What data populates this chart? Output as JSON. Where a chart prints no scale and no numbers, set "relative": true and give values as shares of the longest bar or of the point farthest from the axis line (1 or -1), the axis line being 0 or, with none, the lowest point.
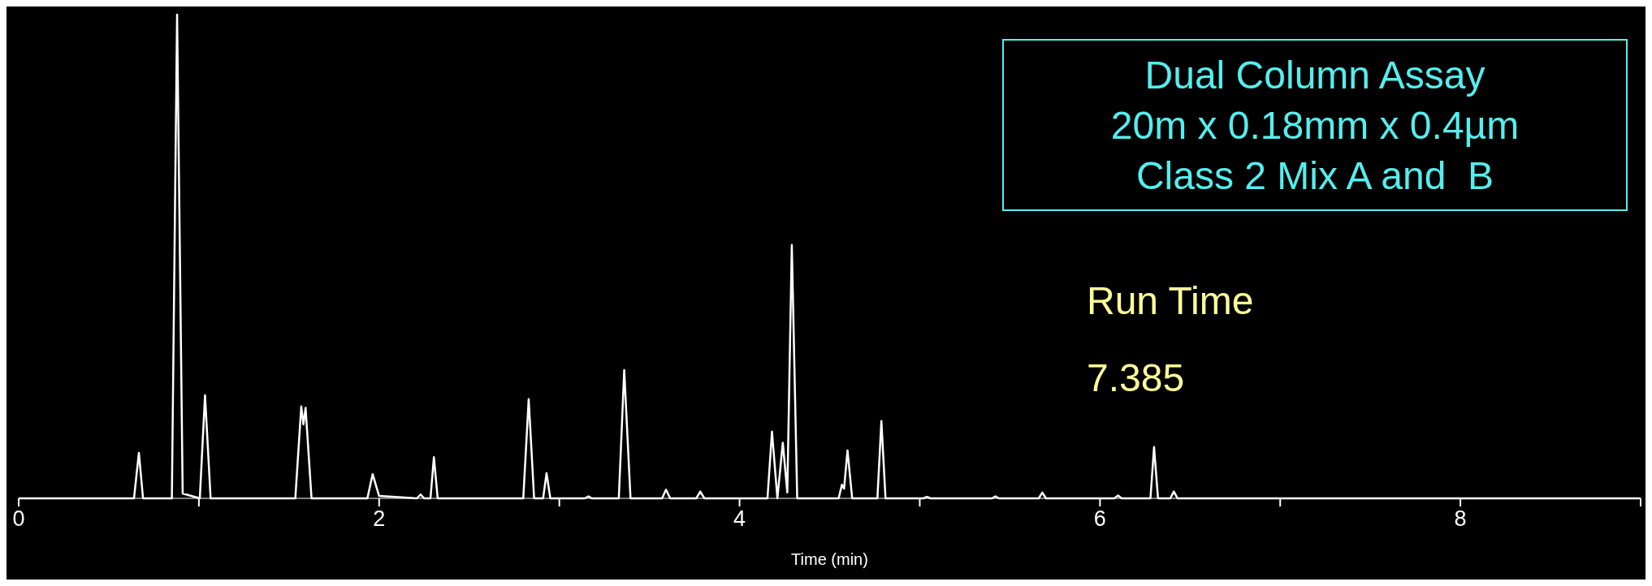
{
  "chart_data": {
    "type": "line",
    "relative": true,
    "xlabel": "Time (min)",
    "annotations": [
      "Dual Column Assay",
      "20m x 0.18mm x 0.4µm",
      "Class 2 Mix A and  B",
      "Run Time",
      "7.385"
    ],
    "xlim": [
      0,
      9
    ],
    "xticks": [
      0,
      {
        "value": 1,
        "label": null
      },
      2,
      {
        "value": 3,
        "label": null
      },
      4,
      {
        "value": 5,
        "label": null
      },
      6,
      {
        "value": 7,
        "label": null
      },
      8,
      {
        "value": 9,
        "label": null
      }
    ],
    "grid": false,
    "legend": false,
    "marker": "none",
    "line_style": "solid",
    "series": [
      {
        "color": "#ffffff",
        "x": [
          0,
          0.64,
          0.667,
          0.69,
          0.85,
          0.879,
          0.91,
          1.005,
          1.034,
          1.065,
          1.535,
          1.568,
          1.58,
          1.592,
          1.625,
          1.935,
          1.964,
          2.0,
          2.21,
          2.23,
          2.25,
          2.285,
          2.304,
          2.325,
          2.8,
          2.83,
          2.86,
          2.91,
          2.929,
          2.95,
          3.14,
          3.162,
          3.18,
          3.33,
          3.36,
          3.395,
          3.57,
          3.592,
          3.615,
          3.76,
          3.782,
          3.805,
          4.155,
          4.18,
          4.21,
          4.24,
          4.265,
          4.29,
          4.32,
          4.55,
          4.568,
          4.58,
          4.599,
          4.625,
          4.765,
          4.787,
          4.81,
          5.02,
          5.04,
          5.06,
          5.4,
          5.42,
          5.44,
          5.66,
          5.68,
          5.7,
          6.08,
          6.1,
          6.12,
          6.28,
          6.3,
          6.322,
          6.39,
          6.41,
          6.43,
          9
        ],
        "values": [
          0,
          0,
          0.094,
          0,
          0,
          1,
          0.01,
          0,
          0.213,
          0,
          0,
          0.19,
          0.153,
          0.187,
          0,
          0,
          0.05,
          0.005,
          0,
          0.008,
          0,
          0,
          0.085,
          0,
          0,
          0.205,
          0,
          0,
          0.052,
          0,
          0,
          0.004,
          0,
          0,
          0.265,
          0,
          0,
          0.018,
          0,
          0,
          0.014,
          0,
          0,
          0.138,
          0,
          0.115,
          0.012,
          0.524,
          0,
          0,
          0.028,
          0.02,
          0.099,
          0,
          0,
          0.16,
          0,
          0,
          0.003,
          0,
          0,
          0.004,
          0,
          0,
          0.012,
          0,
          0,
          0.006,
          0,
          0,
          0.106,
          0,
          0,
          0.014,
          0,
          0
        ]
      }
    ]
  }
}
